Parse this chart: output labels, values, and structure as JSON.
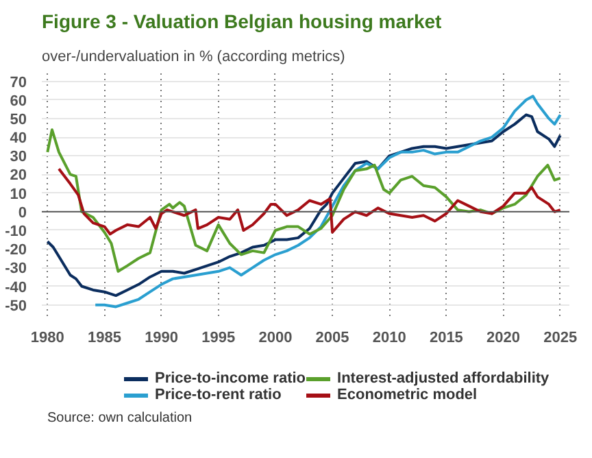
{
  "chart_data": {
    "type": "line",
    "title": "Figure 3 - Valuation Belgian housing market",
    "subtitle": "over-/undervaluation in % (according metrics)",
    "annotations": [
      "Source: own calculation"
    ],
    "xlim": [
      1979.5,
      2025.8
    ],
    "ylim": [
      -56,
      75
    ],
    "xticks": [
      1980,
      1985,
      1990,
      1995,
      2000,
      2005,
      2010,
      2015,
      2020,
      2025
    ],
    "yticks": [
      -50,
      -40,
      -30,
      -20,
      -10,
      0,
      10,
      20,
      30,
      40,
      50,
      60,
      70
    ],
    "grid": true,
    "legend": "bottom",
    "marker": "none",
    "line_style": "solid",
    "ref_lines": [
      {
        "axis": "y",
        "value": 0,
        "label": null,
        "color": "#555555"
      }
    ],
    "series": [
      {
        "name": "Price-to-income ratio",
        "color": "#0b2d5e",
        "x": [
          1980,
          1980.5,
          1981,
          1982,
          1982.5,
          1983,
          1984,
          1985,
          1986,
          1987,
          1988,
          1989,
          1990,
          1991,
          1992,
          1993,
          1994,
          1995,
          1996,
          1997,
          1998,
          1999,
          2000,
          2001,
          2002,
          2003,
          2004,
          2004.5,
          2005,
          2006,
          2007,
          2008,
          2009,
          2010,
          2011,
          2012,
          2013,
          2014,
          2015,
          2016,
          2017,
          2018,
          2019,
          2020,
          2021,
          2022,
          2022.5,
          2023,
          2024,
          2024.5,
          2025
        ],
        "values": [
          -16,
          -19,
          -24,
          -34,
          -36,
          -40,
          -42,
          -43,
          -45,
          -42,
          -39,
          -35,
          -32,
          -32,
          -33,
          -31,
          -29,
          -27,
          -24,
          -22,
          -19,
          -18,
          -15,
          -15,
          -14,
          -9,
          1,
          4,
          10,
          18,
          26,
          27,
          23,
          30,
          32,
          34,
          35,
          35,
          34,
          35,
          36,
          37,
          38,
          43,
          47,
          52,
          51,
          43,
          39,
          35,
          41
        ]
      },
      {
        "name": "Price-to-rent ratio",
        "color": "#2a9fd0",
        "x": [
          1984.2,
          1985,
          1986,
          1987,
          1988,
          1989,
          1990,
          1991,
          1992,
          1993,
          1994,
          1995,
          1996,
          1997,
          1998,
          1999,
          2000,
          2001,
          2002,
          2003,
          2004,
          2005,
          2006,
          2007,
          2008,
          2009,
          2010,
          2011,
          2012,
          2013,
          2014,
          2015,
          2016,
          2017,
          2018,
          2019,
          2020,
          2021,
          2022,
          2022.6,
          2023,
          2024,
          2024.5,
          2025
        ],
        "values": [
          -50,
          -50,
          -51,
          -49,
          -47,
          -43,
          -39,
          -36,
          -35,
          -34,
          -33,
          -32,
          -30,
          -34,
          -30,
          -26,
          -23,
          -21,
          -18,
          -14,
          -8,
          3,
          14,
          22,
          26,
          23,
          29,
          32,
          32,
          33,
          31,
          32,
          32,
          35,
          38,
          40,
          45,
          54,
          60,
          62,
          58,
          50,
          47,
          52
        ]
      },
      {
        "name": "Interest-adjusted affordability",
        "color": "#5aa02c",
        "x": [
          1980,
          1980.4,
          1981,
          1982,
          1982.5,
          1983,
          1984,
          1985,
          1985.6,
          1986.2,
          1987,
          1988,
          1989,
          1990,
          1990.7,
          1991,
          1991.6,
          1992,
          1993,
          1994,
          1995,
          1996,
          1997,
          1998,
          1999,
          2000,
          2001,
          2002,
          2003,
          2004,
          2005,
          2006,
          2007,
          2008,
          2008.7,
          2009.5,
          2010,
          2011,
          2012,
          2013,
          2014,
          2015,
          2016,
          2017,
          2018,
          2019,
          2020,
          2021,
          2022,
          2023,
          2023.9,
          2024.5,
          2025
        ],
        "values": [
          32,
          44,
          32,
          20,
          19,
          0,
          -3,
          -11,
          -17,
          -32,
          -29,
          -25,
          -22,
          1,
          4,
          2,
          5,
          3,
          -18,
          -21,
          -7,
          -17,
          -23,
          -21,
          -22,
          -10,
          -8,
          -8,
          -12,
          -9,
          -2,
          12,
          22,
          23,
          25,
          12,
          10,
          17,
          19,
          14,
          13,
          8,
          1,
          0,
          1,
          -1,
          2,
          4,
          9,
          19,
          25,
          17,
          18
        ]
      },
      {
        "name": "Econometric model",
        "color": "#a50f15",
        "x": [
          1981,
          1982,
          1982.7,
          1983.2,
          1984,
          1985,
          1985.5,
          1986,
          1987,
          1988,
          1989,
          1989.5,
          1990,
          1990.5,
          1991,
          1992,
          1993,
          1993.2,
          1994,
          1995,
          1996,
          1996.7,
          1997.2,
          1998,
          1999,
          1999.6,
          2000,
          2001,
          2002,
          2003,
          2004,
          2004.8,
          2005,
          2006,
          2007,
          2008,
          2009,
          2010,
          2011,
          2012,
          2013,
          2014,
          2015,
          2016,
          2017,
          2018,
          2019,
          2020,
          2021,
          2022,
          2022.5,
          2023,
          2024,
          2024.5,
          2025
        ],
        "values": [
          23,
          15,
          9,
          -1,
          -6,
          -8,
          -12,
          -10,
          -7,
          -8,
          -3,
          -9,
          -1,
          1,
          0,
          -2,
          1,
          -9,
          -7,
          -3,
          -4,
          1,
          -10,
          -7,
          -1,
          4,
          4,
          -2,
          1,
          6,
          4,
          7,
          -11,
          -4,
          0,
          -2,
          2,
          -1,
          -2,
          -3,
          -2,
          -5,
          -1,
          6,
          3,
          0,
          -1,
          3,
          10,
          10,
          13,
          8,
          4,
          0,
          1
        ]
      }
    ]
  }
}
